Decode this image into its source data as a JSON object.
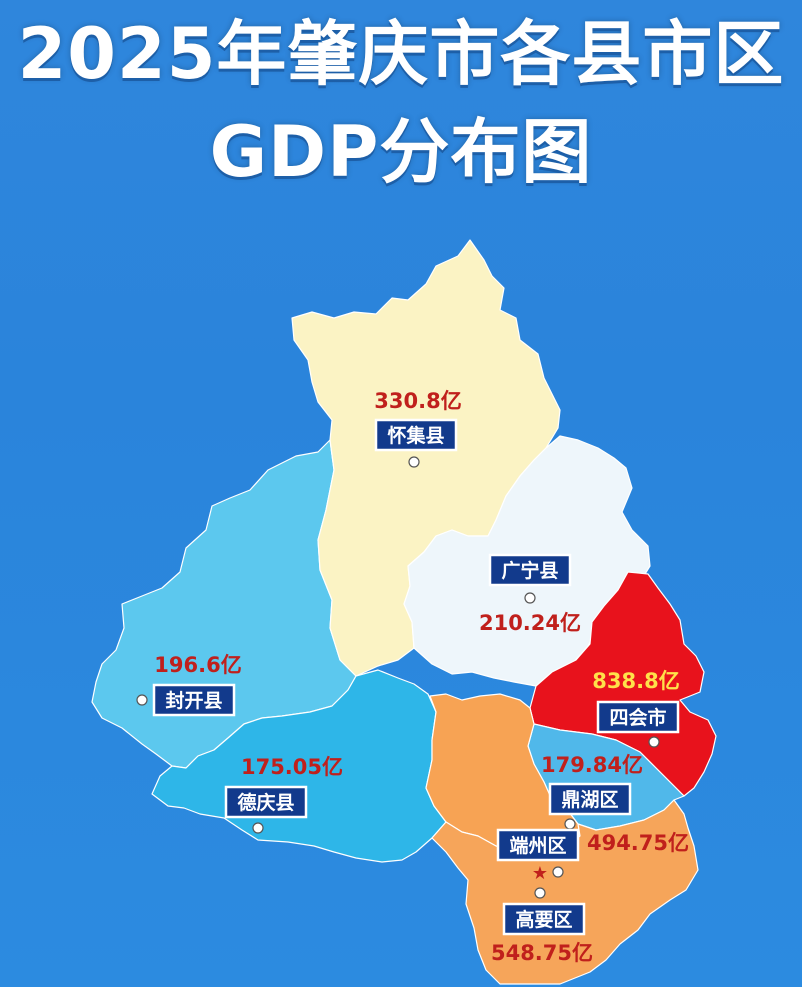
{
  "title": {
    "line1": "2025年肇庆市各县市区",
    "line2": "GDP分布图"
  },
  "colors": {
    "background": "#2b86dc",
    "huaiji": "#fbf3c4",
    "guangning": "#eef6fb",
    "fengkai": "#5cc8ee",
    "deqing": "#2eb6e8",
    "sihui": "#e8121c",
    "dinghu": "#50b8ea",
    "duanzhou": "#f7a354",
    "gaoyao": "#f6a55a",
    "label_box": "#123a8c",
    "value_text": "#c0201c",
    "value_highlight": "#ffe14a"
  },
  "regions": [
    {
      "key": "huaiji",
      "name": "怀集县",
      "value": "330.8亿"
    },
    {
      "key": "guangning",
      "name": "广宁县",
      "value": "210.24亿"
    },
    {
      "key": "fengkai",
      "name": "封开县",
      "value": "196.6亿"
    },
    {
      "key": "deqing",
      "name": "德庆县",
      "value": "175.05亿"
    },
    {
      "key": "sihui",
      "name": "四会市",
      "value": "838.8亿"
    },
    {
      "key": "dinghu",
      "name": "鼎湖区",
      "value": "179.84亿"
    },
    {
      "key": "duanzhou",
      "name": "端州区",
      "value": "494.75亿"
    },
    {
      "key": "gaoyao",
      "name": "高要区",
      "value": "548.75亿"
    }
  ]
}
